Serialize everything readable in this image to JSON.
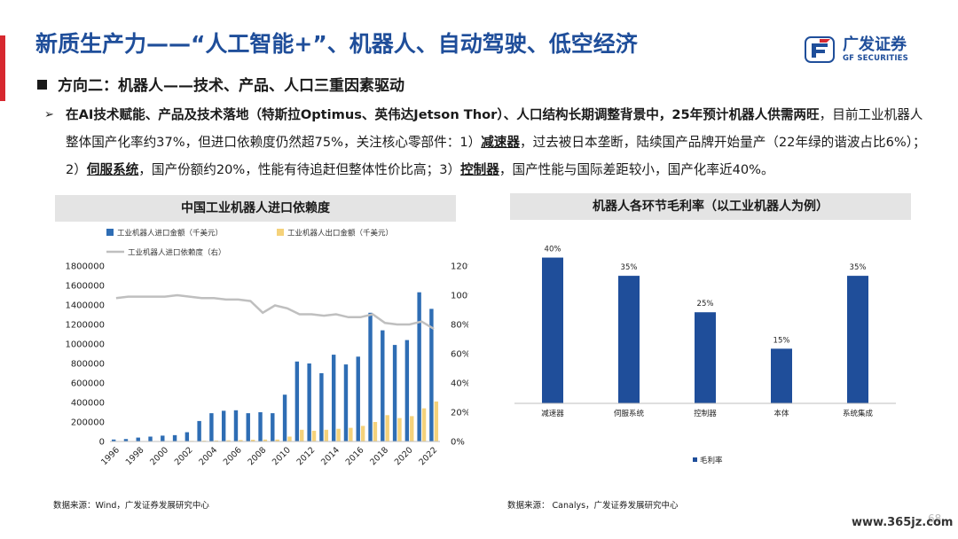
{
  "title": "新质生产力——“人工智能+”、机器人、自动驾驶、低空经济",
  "subtitle": "方向二：机器人——技术、产品、人口三重因素驱动",
  "logo": {
    "cn": "广发证券",
    "en": "GF SECURITIES"
  },
  "paragraph": {
    "bold_intro": "在AI技术赋能、产品及技术落地（特斯拉Optimus、英伟达Jetson Thor）、人口结构长期调整背景中，25年预计机器人供需两旺",
    "text1": "，目前工业机器人整体国产化率约37%，但进口依赖度仍然超75%，关注核心零部件：1）",
    "kw1": "减速器",
    "text2": "，过去被日本垄断，陆续国产品牌开始量产（22年绿的谐波占比6%）；2）",
    "kw2": "伺服系统",
    "text3": "，国产份额约20%，性能有待追赶但整体性价比高；3）",
    "kw3": "控制器",
    "text4": "，国产性能与国际差距较小，国产化率近40%。"
  },
  "left_panel": {
    "header": "中国工业机器人进口依赖度",
    "source": "数据来源：Wind，广发证券发展研究中心"
  },
  "right_panel": {
    "header": "机器人各环节毛利率（以工业机器人为例）",
    "source": "数据来源： Canalys，广发证券发展研究中心"
  },
  "watermark": "www.365jz.com",
  "page_number": "68",
  "colors": {
    "title_blue": "#1f4e9a",
    "import_bar": "#2e6db4",
    "export_bar": "#f5d27a",
    "dependency_line": "#bfbfbf",
    "margin_bar": "#1f4e9a",
    "accent_red": "#d7282f"
  },
  "chart_data": [
    {
      "type": "bar",
      "title": "中国工业机器人进口依赖度",
      "categories": [
        "1996",
        "1997",
        "1998",
        "1999",
        "2000",
        "2001",
        "2002",
        "2003",
        "2004",
        "2005",
        "2006",
        "2007",
        "2008",
        "2009",
        "2010",
        "2011",
        "2012",
        "2013",
        "2014",
        "2015",
        "2016",
        "2017",
        "2018",
        "2019",
        "2020",
        "2021",
        "2022"
      ],
      "x_tick_labels": [
        "1996",
        "1998",
        "2000",
        "2002",
        "2004",
        "2006",
        "2008",
        "2010",
        "2012",
        "2014",
        "2016",
        "2018",
        "2020",
        "2022"
      ],
      "series": [
        {
          "name": "工业机器人进口金额（千美元）",
          "kind": "bar",
          "axis": "left",
          "values": [
            20000,
            25000,
            40000,
            50000,
            60000,
            65000,
            95000,
            210000,
            290000,
            315000,
            320000,
            290000,
            300000,
            290000,
            480000,
            820000,
            800000,
            700000,
            890000,
            790000,
            870000,
            1320000,
            1140000,
            990000,
            1040000,
            1530000,
            1360000
          ]
        },
        {
          "name": "工业机器人出口金额（千美元）",
          "kind": "bar",
          "axis": "left",
          "values": [
            3000,
            3000,
            3000,
            4000,
            5000,
            5000,
            6000,
            8000,
            10000,
            12000,
            15000,
            18000,
            20000,
            20000,
            50000,
            120000,
            110000,
            120000,
            130000,
            140000,
            160000,
            200000,
            270000,
            240000,
            260000,
            340000,
            410000
          ]
        },
        {
          "name": "工业机器人进口依赖度（右）",
          "kind": "line",
          "axis": "right",
          "values": [
            0.98,
            0.99,
            0.99,
            0.99,
            0.99,
            1.0,
            0.99,
            0.98,
            0.98,
            0.97,
            0.97,
            0.96,
            0.88,
            0.93,
            0.91,
            0.87,
            0.87,
            0.86,
            0.87,
            0.85,
            0.85,
            0.87,
            0.81,
            0.8,
            0.8,
            0.82,
            0.77
          ]
        }
      ],
      "y_left": {
        "ylim": [
          0,
          1800000
        ],
        "ticks": [
          "0",
          "200000",
          "400000",
          "600000",
          "800000",
          "1000000",
          "1200000",
          "1400000",
          "1600000",
          "1800000"
        ]
      },
      "y_right": {
        "ylim": [
          0,
          1.2
        ],
        "ticks": [
          "0%",
          "20%",
          "40%",
          "60%",
          "80%",
          "100%",
          "120%"
        ]
      },
      "legend": "top"
    },
    {
      "type": "bar",
      "title": "机器人各环节毛利率（以工业机器人为例）",
      "categories": [
        "减速器",
        "伺服系统",
        "控制器",
        "本体",
        "系统集成"
      ],
      "series": [
        {
          "name": "毛利率",
          "values": [
            0.4,
            0.35,
            0.25,
            0.15,
            0.35
          ]
        }
      ],
      "data_labels": [
        "40%",
        "35%",
        "25%",
        "15%",
        "35%"
      ],
      "ylim": [
        0,
        0.45
      ],
      "legend": "bottom"
    }
  ]
}
